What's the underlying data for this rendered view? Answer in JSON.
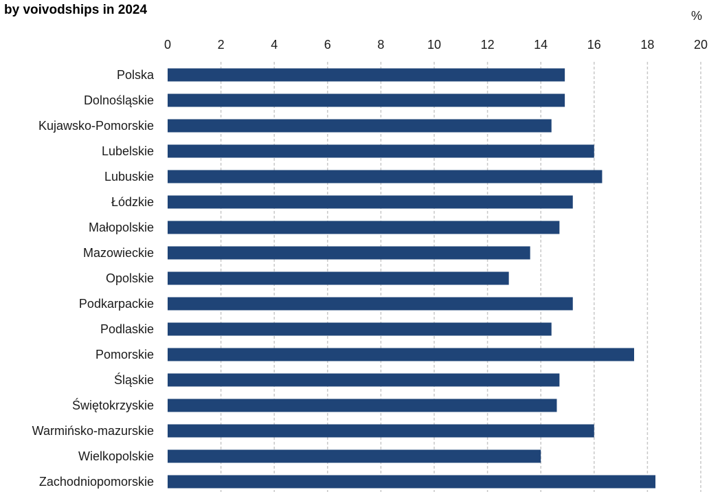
{
  "chart_data": {
    "type": "bar",
    "orientation": "horizontal",
    "title": "by voivodships in 2024",
    "unit": "%",
    "categories": [
      "Polska",
      "Dolnośląskie",
      "Kujawsko-Pomorskie",
      "Lubelskie",
      "Lubuskie",
      "Łódzkie",
      "Małopolskie",
      "Mazowieckie",
      "Opolskie",
      "Podkarpackie",
      "Podlaskie",
      "Pomorskie",
      "Śląskie",
      "Świętokrzyskie",
      "Warmińsko-mazurskie",
      "Wielkopolskie",
      "Zachodniopomorskie"
    ],
    "values": [
      14.9,
      14.9,
      14.4,
      16.0,
      16.3,
      15.2,
      14.7,
      13.6,
      12.8,
      15.2,
      14.4,
      17.5,
      14.7,
      14.6,
      16.0,
      14.0,
      18.3
    ],
    "xlim": [
      0,
      20
    ],
    "ticks": [
      "0",
      "2",
      "4",
      "6",
      "8",
      "10",
      "12",
      "14",
      "16",
      "18",
      "20"
    ],
    "grid": true,
    "bar_color": "#1f4477",
    "grid_color": "#c8c8c8"
  }
}
